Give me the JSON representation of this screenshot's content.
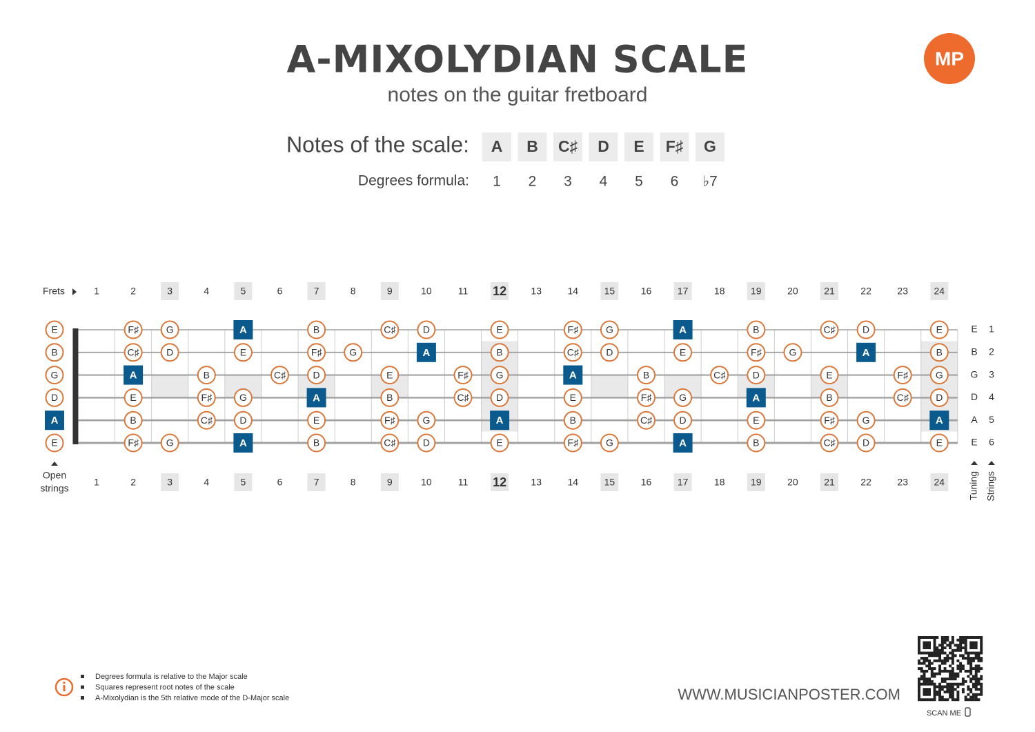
{
  "header": {
    "title": "A-MIXOLYDIAN SCALE",
    "subtitle": "notes on the guitar fretboard",
    "logo": "MP"
  },
  "scale": {
    "notes_label": "Notes of the scale:",
    "notes": [
      "A",
      "B",
      "C♯",
      "D",
      "E",
      "F♯",
      "G"
    ],
    "degrees_label": "Degrees formula:",
    "degrees": [
      "1",
      "2",
      "3",
      "4",
      "5",
      "6",
      "♭7"
    ]
  },
  "fretboard": {
    "frets_label": "Frets",
    "open_strings_label": [
      "Open",
      "strings"
    ],
    "tuning_label": "Tuning",
    "strings_label": "Strings",
    "frets": [
      1,
      2,
      3,
      4,
      5,
      6,
      7,
      8,
      9,
      10,
      11,
      12,
      13,
      14,
      15,
      16,
      17,
      18,
      19,
      20,
      21,
      22,
      23,
      24
    ],
    "inlay_frets": [
      3,
      5,
      7,
      9,
      15,
      17,
      19,
      21
    ],
    "double_inlay_frets": [
      12,
      24
    ],
    "emphasized_frets": [
      12
    ],
    "strings": [
      {
        "tuning": "E",
        "number": 1,
        "notes": [
          "E",
          null,
          "F♯",
          "G",
          null,
          "A",
          null,
          "B",
          null,
          "C♯",
          "D",
          null,
          "E",
          null,
          "F♯",
          "G",
          null,
          "A",
          null,
          "B",
          null,
          "C♯",
          "D",
          null,
          "E"
        ]
      },
      {
        "tuning": "B",
        "number": 2,
        "notes": [
          "B",
          null,
          "C♯",
          "D",
          null,
          "E",
          null,
          "F♯",
          "G",
          null,
          "A",
          null,
          "B",
          null,
          "C♯",
          "D",
          null,
          "E",
          null,
          "F♯",
          "G",
          null,
          "A",
          null,
          "B"
        ]
      },
      {
        "tuning": "G",
        "number": 3,
        "notes": [
          "G",
          null,
          "A",
          null,
          "B",
          null,
          "C♯",
          "D",
          null,
          "E",
          null,
          "F♯",
          "G",
          null,
          "A",
          null,
          "B",
          null,
          "C♯",
          "D",
          null,
          "E",
          null,
          "F♯",
          "G"
        ]
      },
      {
        "tuning": "D",
        "number": 4,
        "notes": [
          "D",
          null,
          "E",
          null,
          "F♯",
          "G",
          null,
          "A",
          null,
          "B",
          null,
          "C♯",
          "D",
          null,
          "E",
          null,
          "F♯",
          "G",
          null,
          "A",
          null,
          "B",
          null,
          "C♯",
          "D"
        ]
      },
      {
        "tuning": "A",
        "number": 5,
        "notes": [
          "A",
          null,
          "B",
          null,
          "C♯",
          "D",
          null,
          "E",
          null,
          "F♯",
          "G",
          null,
          "A",
          null,
          "B",
          null,
          "C♯",
          "D",
          null,
          "E",
          null,
          "F♯",
          "G",
          null,
          "A"
        ]
      },
      {
        "tuning": "E",
        "number": 6,
        "notes": [
          "E",
          null,
          "F♯",
          "G",
          null,
          "A",
          null,
          "B",
          null,
          "C♯",
          "D",
          null,
          "E",
          null,
          "F♯",
          "G",
          null,
          "A",
          null,
          "B",
          null,
          "C♯",
          "D",
          null,
          "E"
        ]
      }
    ]
  },
  "footer": {
    "notes": [
      "Degrees formula is relative to the Major scale",
      "Squares represent root notes of the scale",
      "A-Mixolydian is the 5th relative mode of the D-Major scale"
    ],
    "website": "WWW.MUSICIANPOSTER.COM",
    "scan": "SCAN ME"
  }
}
